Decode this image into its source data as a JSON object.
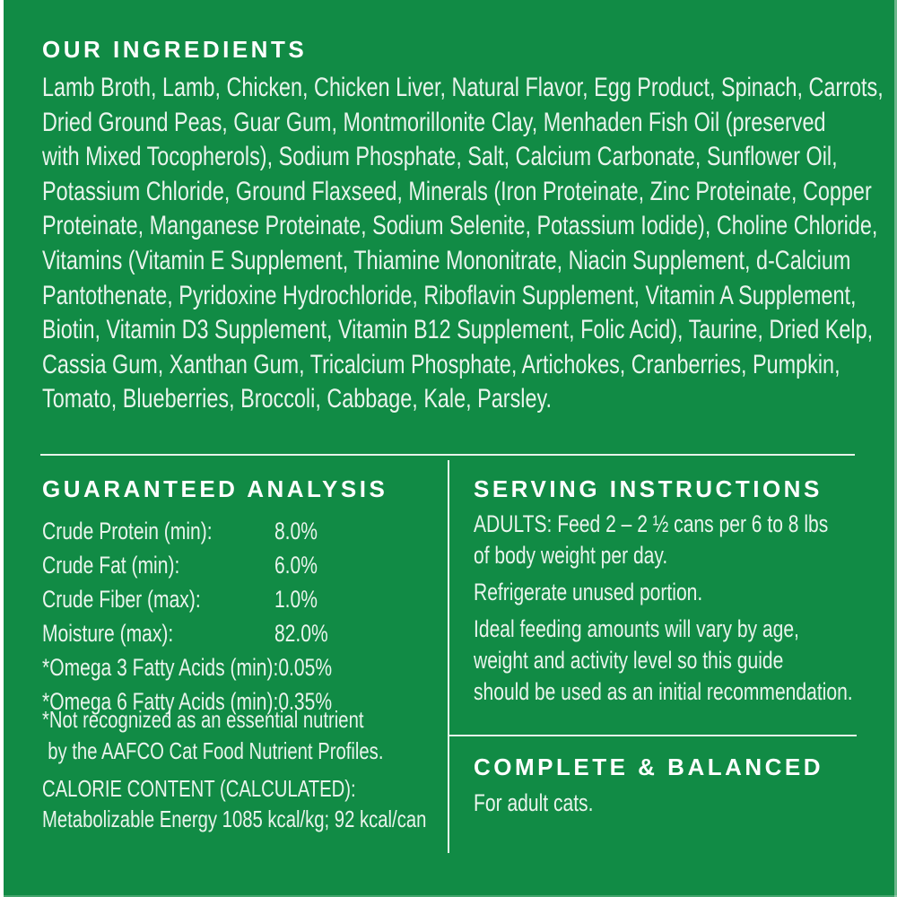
{
  "colors": {
    "background": "#118b45",
    "heading_text": "#ffffff",
    "body_text": "#e9f4ec",
    "divider": "#e8f4ea"
  },
  "ingredients": {
    "heading": "OUR INGREDIENTS",
    "lines": [
      "Lamb Broth, Lamb, Chicken, Chicken Liver, Natural Flavor, Egg Product, Spinach, Carrots,",
      "Dried Ground Peas, Guar Gum, Montmorillonite Clay, Menhaden Fish Oil (preserved",
      "with Mixed Tocopherols), Sodium Phosphate, Salt, Calcium Carbonate, Sunflower Oil,",
      "Potassium Chloride, Ground Flaxseed, Minerals (Iron Proteinate, Zinc Proteinate, Copper",
      "Proteinate, Manganese Proteinate, Sodium Selenite, Potassium Iodide), Choline Chloride,",
      "Vitamins (Vitamin E Supplement, Thiamine Mononitrate, Niacin Supplement, d-Calcium",
      "Pantothenate, Pyridoxine Hydrochloride, Riboflavin Supplement, Vitamin A Supplement,",
      "Biotin, Vitamin D3 Supplement, Vitamin B12 Supplement, Folic Acid), Taurine, Dried Kelp,",
      "Cassia Gum, Xanthan Gum, Tricalcium Phosphate, Artichokes, Cranberries, Pumpkin,",
      "Tomato, Blueberries, Broccoli, Cabbage, Kale, Parsley."
    ]
  },
  "guaranteed_analysis": {
    "heading": "GUARANTEED ANALYSIS",
    "rows": [
      {
        "label": "Crude Protein (min):",
        "value": "8.0%"
      },
      {
        "label": "Crude Fat (min):",
        "value": "6.0%"
      },
      {
        "label": "Crude Fiber (max):",
        "value": "1.0%"
      },
      {
        "label": "Moisture (max):",
        "value": "82.0%"
      },
      {
        "label": "*Omega 3 Fatty Acids (min):",
        "value": "0.05%"
      },
      {
        "label": "*Omega 6 Fatty Acids (min):",
        "value": "0.35%"
      }
    ],
    "footnote_line1": "*Not recognized as an essential nutrient",
    "footnote_line2": "by the AAFCO Cat Food Nutrient Profiles.",
    "calorie_heading": "CALORIE CONTENT (CALCULATED):",
    "calorie_value": "Metabolizable Energy 1085 kcal/kg; 92 kcal/can"
  },
  "serving_instructions": {
    "heading": "SERVING INSTRUCTIONS",
    "p1_line1": "ADULTS: Feed 2 – 2 ½ cans per 6 to 8 lbs",
    "p1_line2": "of body weight per day.",
    "p2_line1": "Refrigerate unused portion.",
    "p3_line1": "Ideal feeding amounts will vary by age,",
    "p3_line2": "weight and activity level so this guide",
    "p3_line3": "should be used as an initial recommendation."
  },
  "complete_balanced": {
    "heading": "COMPLETE & BALANCED",
    "subtext": "For adult cats."
  }
}
